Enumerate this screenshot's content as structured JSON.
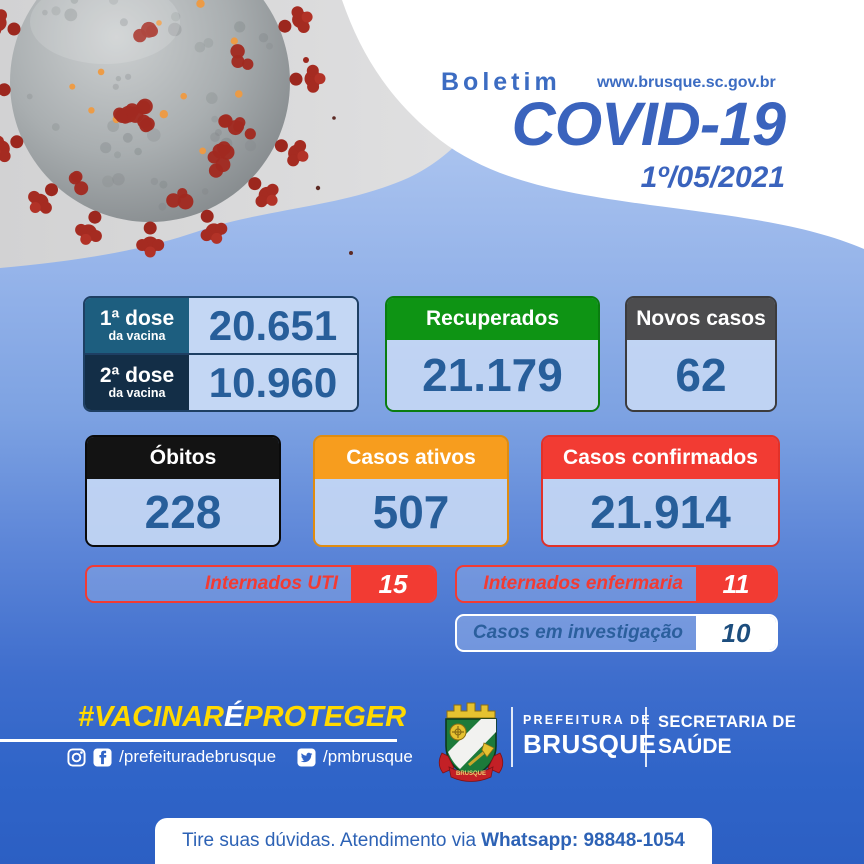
{
  "header": {
    "kicker": "Boletim",
    "site": "www.brusque.sc.gov.br",
    "title": "COVID-19",
    "date": "1º/05/2021"
  },
  "vaccine": {
    "dose1": {
      "label": "1ª dose",
      "sub": "da vacina",
      "value": "20.651"
    },
    "dose2": {
      "label": "2ª dose",
      "sub": "da vacina",
      "value": "10.960"
    }
  },
  "cards": {
    "recovered": {
      "label": "Recuperados",
      "value": "21.179"
    },
    "new_cases": {
      "label": "Novos casos",
      "value": "62"
    },
    "deaths": {
      "label": "Óbitos",
      "value": "228"
    },
    "active": {
      "label": "Casos ativos",
      "value": "507"
    },
    "confirmed": {
      "label": "Casos confirmados",
      "value": "21.914"
    }
  },
  "bars": {
    "icu": {
      "label": "Internados UTI",
      "value": "15"
    },
    "ward": {
      "label": "Internados enfermaria",
      "value": "11"
    },
    "investigation": {
      "label": "Casos em investigação",
      "value": "10"
    }
  },
  "footer": {
    "hashtag": {
      "part1": "#VACINAR",
      "accent": "É",
      "part2": "PROTEGER"
    },
    "social": {
      "handle_fb_ig": "/prefeituradebrusque",
      "handle_tw": "/pmbrusque"
    },
    "org": {
      "line1": "PREFEITURA DE",
      "line2": "BRUSQUE"
    },
    "dept": {
      "line1": "SECRETARIA DE",
      "line2": "SAÚDE"
    },
    "crest_ribbon": "BRUSQUE"
  },
  "whatsapp": {
    "prefix": "Tire suas dúvidas. Atendimento via",
    "bold": "Whatsapp: 98848-1054"
  },
  "colors": {
    "green": "#0e9414",
    "orange": "#f79d1e",
    "red": "#f23b33",
    "black": "#131313",
    "gray": "#4c4c4e",
    "number-blue": "#275e9a",
    "header-blue": "#3a63bd",
    "yellow": "#ffd900",
    "panel-blue": "#c4d7f4",
    "dose1-bg": "#1d5e7f",
    "dose2-bg": "#132e47",
    "page-top": "#b9cdf2",
    "page-bottom": "#2c5fc3"
  }
}
